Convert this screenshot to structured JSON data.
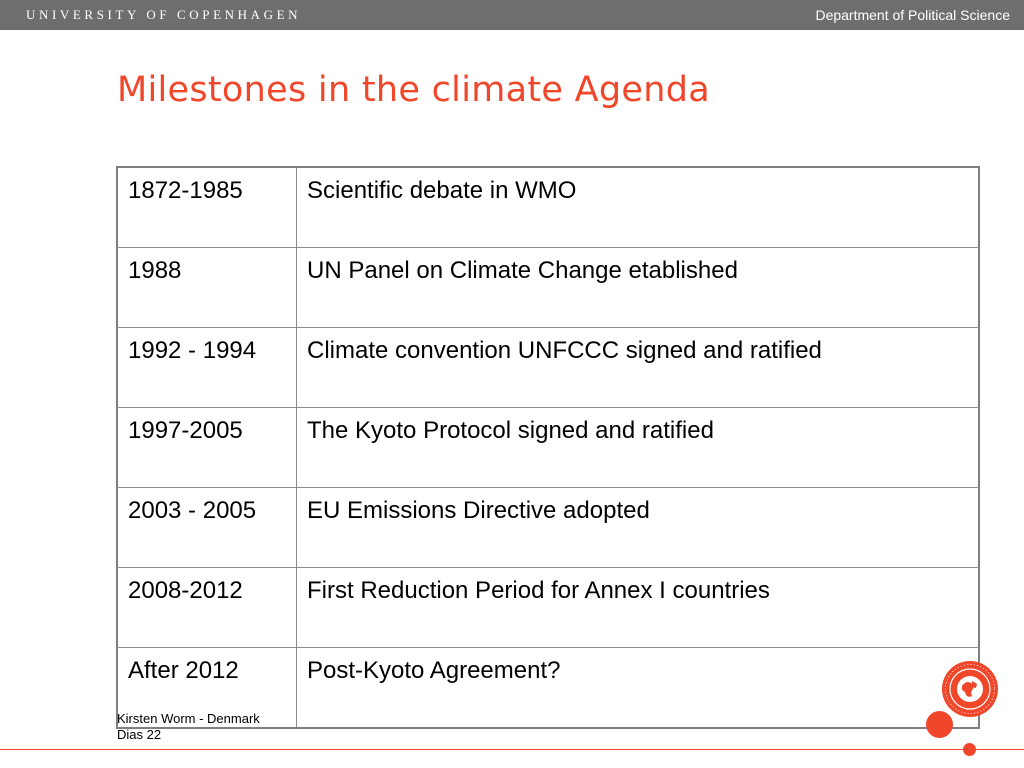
{
  "header": {
    "university": "UNIVERSITY OF COPENHAGEN",
    "department": "Department of Political Science"
  },
  "slide": {
    "title": "Milestones in the climate Agenda"
  },
  "table": {
    "rows": [
      {
        "period": "1872-1985",
        "event": "Scientific debate in WMO"
      },
      {
        "period": "1988",
        "event": "UN Panel on Climate Change etablished"
      },
      {
        "period": "1992 - 1994",
        "event": "Climate convention UNFCCC signed and ratified"
      },
      {
        "period": "1997-2005",
        "event": "The Kyoto Protocol signed and ratified"
      },
      {
        "period": "2003 - 2005",
        "event": "EU Emissions Directive adopted"
      },
      {
        "period": "2008-2012",
        "event": "First Reduction Period for Annex I countries"
      },
      {
        "period": "After 2012",
        "event": "Post-Kyoto Agreement?"
      }
    ]
  },
  "footer": {
    "author": "Kirsten Worm - Denmark",
    "slide_number": "Dias 22"
  },
  "colors": {
    "accent": "#f0462a",
    "header_bar": "#6e6e6e",
    "table_border": "#7f7f7f"
  },
  "icons": {
    "seal": "university-seal-icon"
  }
}
